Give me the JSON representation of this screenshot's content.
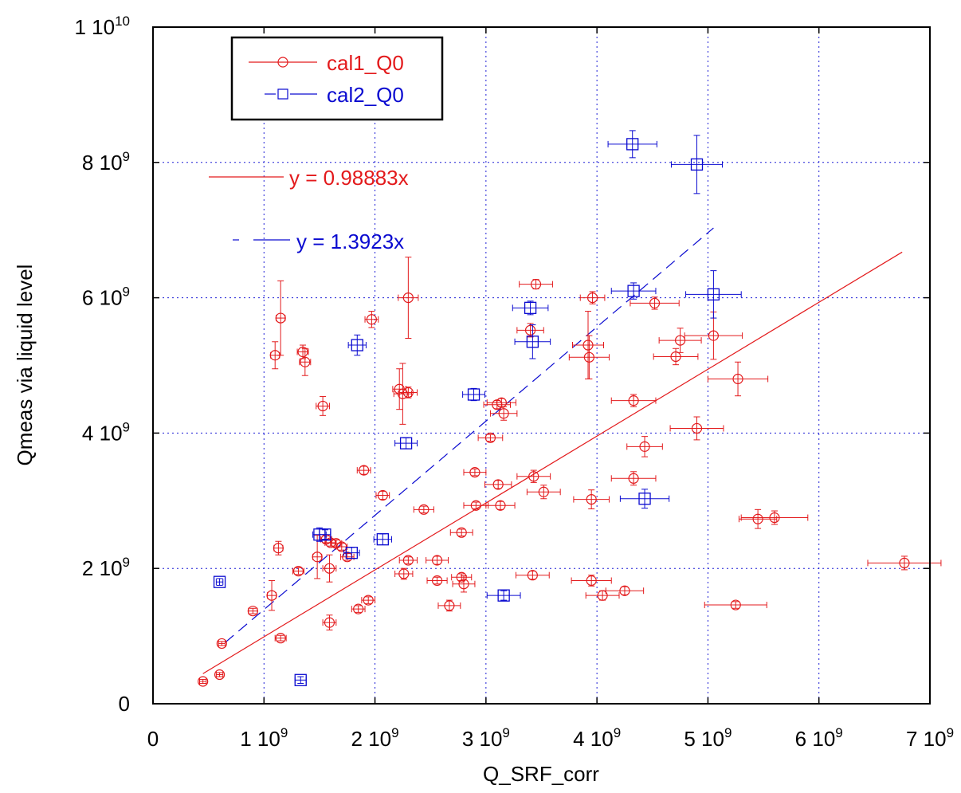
{
  "chart_data": {
    "type": "scatter",
    "xlabel": "Q_SRF_corr",
    "ylabel": "Qmeas via liquid level",
    "xlim": [
      0,
      7000000000
    ],
    "ylim": [
      0,
      10000000000
    ],
    "grid": true,
    "legend_position": "top-left",
    "x_ticks": [
      {
        "value": 0,
        "mant": "0",
        "exp": ""
      },
      {
        "value": 1000000000,
        "mant": "1 10",
        "exp": "9"
      },
      {
        "value": 2000000000,
        "mant": "2 10",
        "exp": "9"
      },
      {
        "value": 3000000000,
        "mant": "3 10",
        "exp": "9"
      },
      {
        "value": 4000000000,
        "mant": "4 10",
        "exp": "9"
      },
      {
        "value": 5000000000,
        "mant": "5 10",
        "exp": "9"
      },
      {
        "value": 6000000000,
        "mant": "6 10",
        "exp": "9"
      },
      {
        "value": 7000000000,
        "mant": "7 10",
        "exp": "9"
      }
    ],
    "y_ticks": [
      {
        "value": 0,
        "mant": "0",
        "exp": ""
      },
      {
        "value": 2000000000,
        "mant": "2 10",
        "exp": "9"
      },
      {
        "value": 4000000000,
        "mant": "4 10",
        "exp": "9"
      },
      {
        "value": 6000000000,
        "mant": "6 10",
        "exp": "9"
      },
      {
        "value": 8000000000,
        "mant": "8 10",
        "exp": "9"
      },
      {
        "value": 10000000000,
        "mant": "1 10",
        "exp": "10"
      }
    ],
    "series": [
      {
        "name": "cal1_Q0",
        "color": "#e31a1c",
        "marker": "circle",
        "points": [
          [
            0.45,
            0.33,
            0.03,
            0.03
          ],
          [
            0.6,
            0.43,
            0.03,
            0.03
          ],
          [
            0.62,
            0.89,
            0.03,
            0.03
          ],
          [
            0.9,
            1.37,
            0.04,
            0.04
          ],
          [
            1.15,
            0.97,
            0.05,
            0.04
          ],
          [
            1.07,
            1.6,
            0.04,
            0.22
          ],
          [
            1.13,
            2.3,
            0.04,
            0.1
          ],
          [
            1.31,
            1.96,
            0.05,
            0.05
          ],
          [
            1.48,
            2.17,
            0.04,
            0.32
          ],
          [
            1.59,
            2.0,
            0.06,
            0.2
          ],
          [
            1.6,
            2.38,
            0.05,
            0.05
          ],
          [
            1.65,
            2.37,
            0.05,
            0.05
          ],
          [
            1.7,
            2.32,
            0.05,
            0.05
          ],
          [
            1.56,
            2.43,
            0.05,
            0.05
          ],
          [
            1.75,
            2.17,
            0.06,
            0.05
          ],
          [
            1.59,
            1.2,
            0.06,
            0.11
          ],
          [
            1.85,
            1.4,
            0.06,
            0.05
          ],
          [
            1.94,
            1.53,
            0.06,
            0.05
          ],
          [
            1.1,
            5.15,
            0.04,
            0.2
          ],
          [
            1.15,
            5.7,
            0.04,
            0.55
          ],
          [
            1.35,
            5.2,
            0.05,
            0.1
          ],
          [
            1.37,
            5.05,
            0.05,
            0.2
          ],
          [
            1.53,
            4.4,
            0.06,
            0.14
          ],
          [
            1.97,
            5.68,
            0.06,
            0.12
          ],
          [
            1.9,
            3.45,
            0.06,
            0.06
          ],
          [
            2.07,
            3.08,
            0.06,
            0.06
          ],
          [
            2.22,
            4.65,
            0.06,
            0.3
          ],
          [
            2.25,
            4.58,
            0.08,
            0.45
          ],
          [
            2.3,
            4.6,
            0.08,
            0.08
          ],
          [
            2.3,
            6.0,
            0.09,
            0.6
          ],
          [
            2.26,
            1.92,
            0.08,
            0.08
          ],
          [
            2.3,
            2.12,
            0.08,
            0.05
          ],
          [
            2.44,
            2.87,
            0.09,
            0.05
          ],
          [
            2.56,
            2.12,
            0.1,
            0.06
          ],
          [
            2.56,
            1.82,
            0.09,
            0.05
          ],
          [
            2.67,
            1.45,
            0.1,
            0.08
          ],
          [
            2.78,
            2.53,
            0.1,
            0.05
          ],
          [
            2.78,
            1.87,
            0.09,
            0.05
          ],
          [
            2.8,
            1.77,
            0.1,
            0.12
          ],
          [
            2.9,
            3.42,
            0.1,
            0.05
          ],
          [
            2.91,
            2.93,
            0.11,
            0.05
          ],
          [
            3.04,
            3.93,
            0.11,
            0.05
          ],
          [
            3.11,
            3.24,
            0.12,
            0.06
          ],
          [
            3.1,
            4.42,
            0.12,
            0.06
          ],
          [
            3.14,
            4.45,
            0.13,
            0.06
          ],
          [
            3.16,
            4.29,
            0.12,
            0.1
          ],
          [
            3.13,
            2.93,
            0.13,
            0.06
          ],
          [
            3.4,
            5.52,
            0.12,
            0.1
          ],
          [
            3.45,
            6.2,
            0.15,
            0.07
          ],
          [
            3.43,
            3.36,
            0.15,
            0.09
          ],
          [
            3.52,
            3.13,
            0.15,
            0.1
          ],
          [
            3.42,
            1.9,
            0.15,
            0.06
          ],
          [
            3.92,
            5.3,
            0.14,
            0.5
          ],
          [
            3.93,
            5.12,
            0.18,
            0.32
          ],
          [
            3.96,
            6.0,
            0.11,
            0.09
          ],
          [
            3.95,
            3.02,
            0.16,
            0.14
          ],
          [
            3.95,
            1.82,
            0.18,
            0.08
          ],
          [
            4.05,
            1.6,
            0.15,
            0.07
          ],
          [
            4.25,
            1.67,
            0.17,
            0.06
          ],
          [
            4.33,
            3.33,
            0.2,
            0.1
          ],
          [
            4.33,
            4.48,
            0.2,
            0.09
          ],
          [
            4.43,
            3.8,
            0.16,
            0.15
          ],
          [
            4.52,
            5.92,
            0.22,
            0.09
          ],
          [
            4.71,
            5.13,
            0.2,
            0.12
          ],
          [
            4.75,
            5.37,
            0.19,
            0.18
          ],
          [
            4.9,
            4.07,
            0.24,
            0.17
          ],
          [
            5.05,
            5.44,
            0.26,
            0.35
          ],
          [
            5.27,
            4.8,
            0.27,
            0.25
          ],
          [
            5.25,
            1.46,
            0.28,
            0.05
          ],
          [
            5.45,
            2.73,
            0.17,
            0.14
          ],
          [
            5.6,
            2.75,
            0.3,
            0.1
          ],
          [
            6.77,
            2.08,
            0.33,
            0.1
          ]
        ]
      },
      {
        "name": "cal2_Q0",
        "color": "#0a0ad0",
        "marker": "square",
        "points": [
          [
            0.6,
            1.8,
            0.03,
            0.05
          ],
          [
            1.33,
            0.35,
            0.05,
            0.05
          ],
          [
            1.5,
            2.5,
            0.06,
            0.1
          ],
          [
            1.55,
            2.5,
            0.05,
            0.07
          ],
          [
            1.79,
            2.23,
            0.07,
            0.08
          ],
          [
            1.84,
            5.3,
            0.08,
            0.15
          ],
          [
            2.07,
            2.43,
            0.08,
            0.08
          ],
          [
            2.28,
            3.85,
            0.1,
            0.08
          ],
          [
            2.89,
            4.57,
            0.1,
            0.09
          ],
          [
            3.16,
            1.6,
            0.15,
            0.07
          ],
          [
            3.4,
            5.85,
            0.16,
            0.1
          ],
          [
            3.42,
            5.35,
            0.16,
            0.25
          ],
          [
            4.32,
            8.27,
            0.22,
            0.2
          ],
          [
            4.33,
            6.1,
            0.2,
            0.12
          ],
          [
            4.43,
            3.03,
            0.22,
            0.14
          ],
          [
            4.9,
            7.97,
            0.23,
            0.43
          ],
          [
            5.05,
            6.05,
            0.25,
            0.35
          ]
        ]
      }
    ],
    "fits": [
      {
        "label": "y = 0.98883x",
        "slope": 0.98883,
        "color": "#e31a1c",
        "dash": "",
        "x_range": [
          0.45,
          6.75
        ]
      },
      {
        "label": "y = 1.3923x",
        "slope": 1.3923,
        "color": "#0a0ad0",
        "dash": "14,8",
        "x_range": [
          0.65,
          5.05
        ]
      }
    ],
    "legend": [
      {
        "label": "cal1_Q0",
        "color": "#e31a1c",
        "marker": "circle"
      },
      {
        "label": "cal2_Q0",
        "color": "#0a0ad0",
        "marker": "square"
      }
    ]
  }
}
